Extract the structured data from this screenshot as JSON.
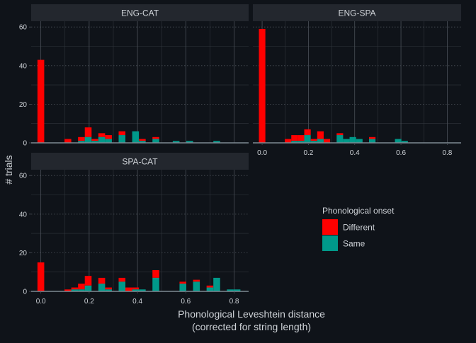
{
  "chart_data": {
    "type": "bar",
    "subtype": "stacked-histogram-faceted",
    "xlabel_line1": "Phonological Leveshtein distance",
    "xlabel_line2": "(corrected for string length)",
    "ylabel": "# trials",
    "xlim": [
      -0.04,
      0.86
    ],
    "ylim": [
      0,
      63
    ],
    "bin_width": 0.028,
    "x_ticks": [
      0.0,
      0.2,
      0.4,
      0.6,
      0.8
    ],
    "x_tick_labels": [
      "0.0",
      "0.2",
      "0.4",
      "0.6",
      "0.8"
    ],
    "y_ticks": [
      0,
      20,
      40,
      60
    ],
    "y_tick_labels": [
      "0",
      "20",
      "40",
      "60"
    ],
    "grid": true,
    "legend": {
      "title": "Phonological onset",
      "position": "right",
      "items": [
        {
          "label": "Different",
          "color": "#ff0000"
        },
        {
          "label": "Same",
          "color": "#00998a"
        }
      ]
    },
    "colors": {
      "background": "#0f1319",
      "panel": "#0f1319",
      "strip": "#23272e",
      "grid_major": "#4a5058",
      "grid_minor": "#31363d",
      "text": "#cfd3d8",
      "zero_line": "#7f8a93"
    },
    "panels": [
      {
        "name": "ENG-CAT",
        "bins": [
          {
            "x": 0.0,
            "same": 0,
            "total": 43
          },
          {
            "x": 0.112,
            "same": 0,
            "total": 2
          },
          {
            "x": 0.168,
            "same": 1,
            "total": 3
          },
          {
            "x": 0.196,
            "same": 3,
            "total": 8
          },
          {
            "x": 0.224,
            "same": 1,
            "total": 2
          },
          {
            "x": 0.252,
            "same": 3,
            "total": 5
          },
          {
            "x": 0.28,
            "same": 2,
            "total": 4
          },
          {
            "x": 0.336,
            "same": 4,
            "total": 6
          },
          {
            "x": 0.392,
            "same": 6,
            "total": 6
          },
          {
            "x": 0.42,
            "same": 1,
            "total": 2
          },
          {
            "x": 0.476,
            "same": 2,
            "total": 3
          },
          {
            "x": 0.56,
            "same": 1,
            "total": 1
          },
          {
            "x": 0.616,
            "same": 1,
            "total": 1
          },
          {
            "x": 0.728,
            "same": 1,
            "total": 1
          }
        ]
      },
      {
        "name": "ENG-SPA",
        "bins": [
          {
            "x": 0.0,
            "same": 0,
            "total": 59
          },
          {
            "x": 0.112,
            "same": 0,
            "total": 2
          },
          {
            "x": 0.14,
            "same": 1,
            "total": 4
          },
          {
            "x": 0.168,
            "same": 1,
            "total": 4
          },
          {
            "x": 0.196,
            "same": 4,
            "total": 7
          },
          {
            "x": 0.224,
            "same": 1,
            "total": 2
          },
          {
            "x": 0.252,
            "same": 2,
            "total": 6
          },
          {
            "x": 0.28,
            "same": 0,
            "total": 2
          },
          {
            "x": 0.336,
            "same": 4,
            "total": 5
          },
          {
            "x": 0.364,
            "same": 2,
            "total": 2
          },
          {
            "x": 0.392,
            "same": 3,
            "total": 3
          },
          {
            "x": 0.42,
            "same": 2,
            "total": 2
          },
          {
            "x": 0.476,
            "same": 2,
            "total": 3
          },
          {
            "x": 0.588,
            "same": 2,
            "total": 2
          },
          {
            "x": 0.616,
            "same": 1,
            "total": 1
          }
        ]
      },
      {
        "name": "SPA-CAT",
        "bins": [
          {
            "x": 0.0,
            "same": 0,
            "total": 15
          },
          {
            "x": 0.112,
            "same": 0,
            "total": 1
          },
          {
            "x": 0.14,
            "same": 1,
            "total": 2
          },
          {
            "x": 0.168,
            "same": 1,
            "total": 4
          },
          {
            "x": 0.196,
            "same": 3,
            "total": 8
          },
          {
            "x": 0.252,
            "same": 4,
            "total": 7
          },
          {
            "x": 0.28,
            "same": 1,
            "total": 2
          },
          {
            "x": 0.336,
            "same": 5,
            "total": 7
          },
          {
            "x": 0.364,
            "same": 0,
            "total": 2
          },
          {
            "x": 0.392,
            "same": 1,
            "total": 2
          },
          {
            "x": 0.42,
            "same": 1,
            "total": 1
          },
          {
            "x": 0.476,
            "same": 7,
            "total": 11
          },
          {
            "x": 0.588,
            "same": 4,
            "total": 5
          },
          {
            "x": 0.644,
            "same": 5,
            "total": 6
          },
          {
            "x": 0.7,
            "same": 2,
            "total": 3
          },
          {
            "x": 0.728,
            "same": 7,
            "total": 7
          },
          {
            "x": 0.784,
            "same": 1,
            "total": 1
          },
          {
            "x": 0.812,
            "same": 1,
            "total": 1
          }
        ]
      }
    ]
  }
}
